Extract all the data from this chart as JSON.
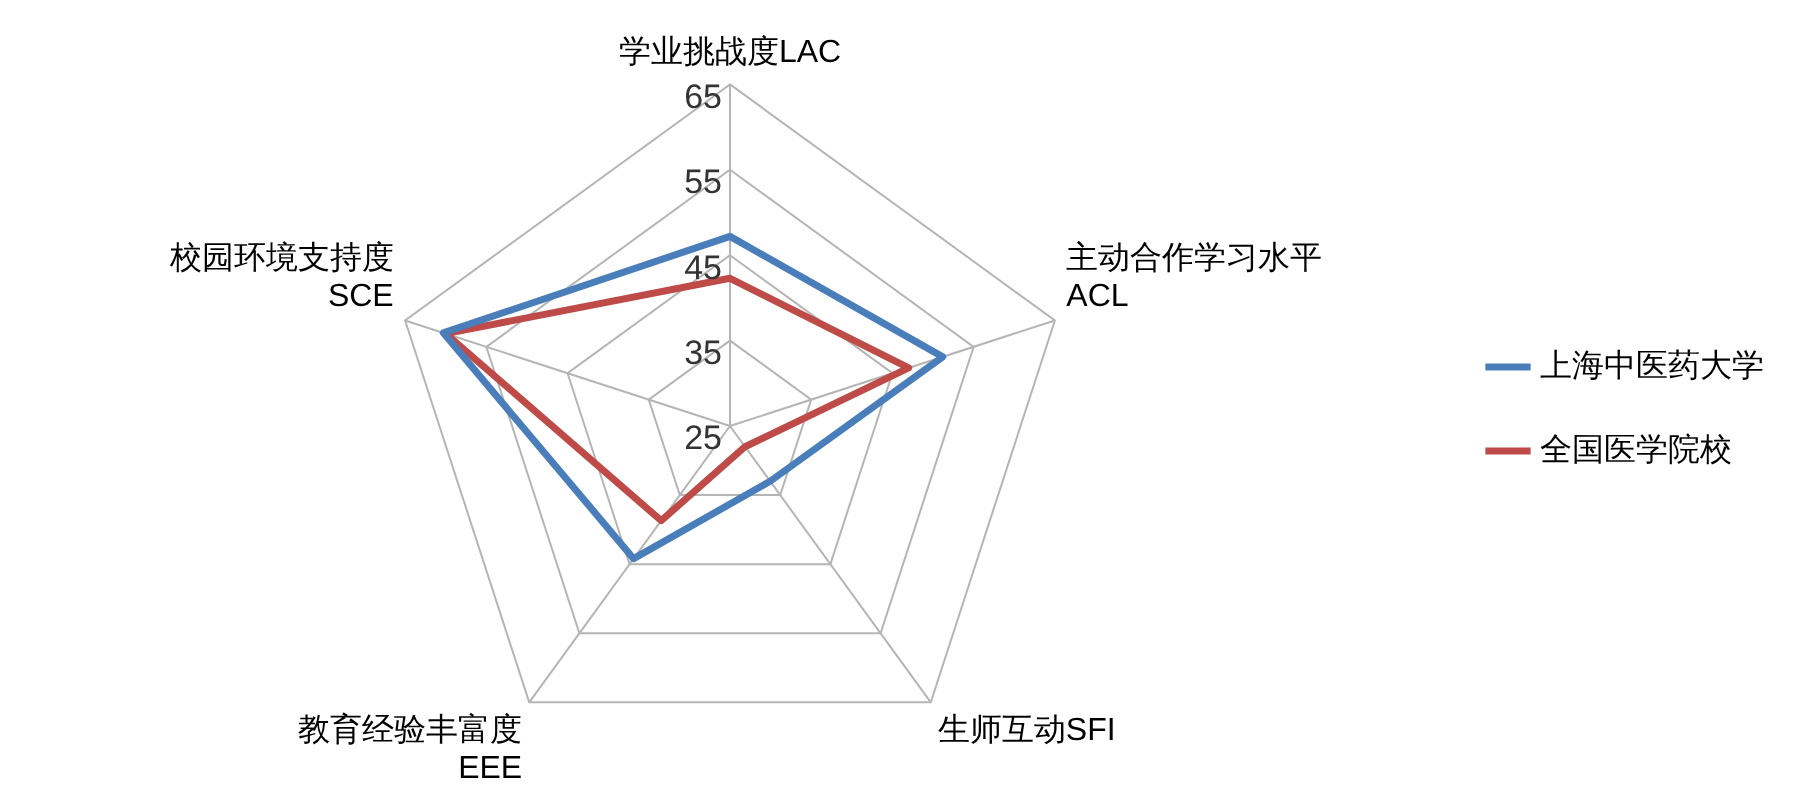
{
  "chart_data": {
    "type": "radar",
    "categories": [
      "学业挑战度LAC",
      "主动合作学习水平\nACL",
      "生师互动SFI",
      "教育经验丰富度\nEEE",
      "校园环境支持度\nSCE"
    ],
    "series": [
      {
        "name": "上海中医药大学",
        "color": "#4a7ebb",
        "values": [
          47.2,
          51.2,
          33,
          44.2,
          60.3
        ]
      },
      {
        "name": "全国医学院校",
        "color": "#be4b48",
        "values": [
          42.3,
          47,
          28,
          38.7,
          60
        ]
      }
    ],
    "ylim": [
      25,
      65
    ],
    "yticks": [
      25,
      35,
      45,
      55,
      65
    ],
    "grid": true,
    "legend": "right",
    "marker": "none",
    "line_style": "solid"
  }
}
